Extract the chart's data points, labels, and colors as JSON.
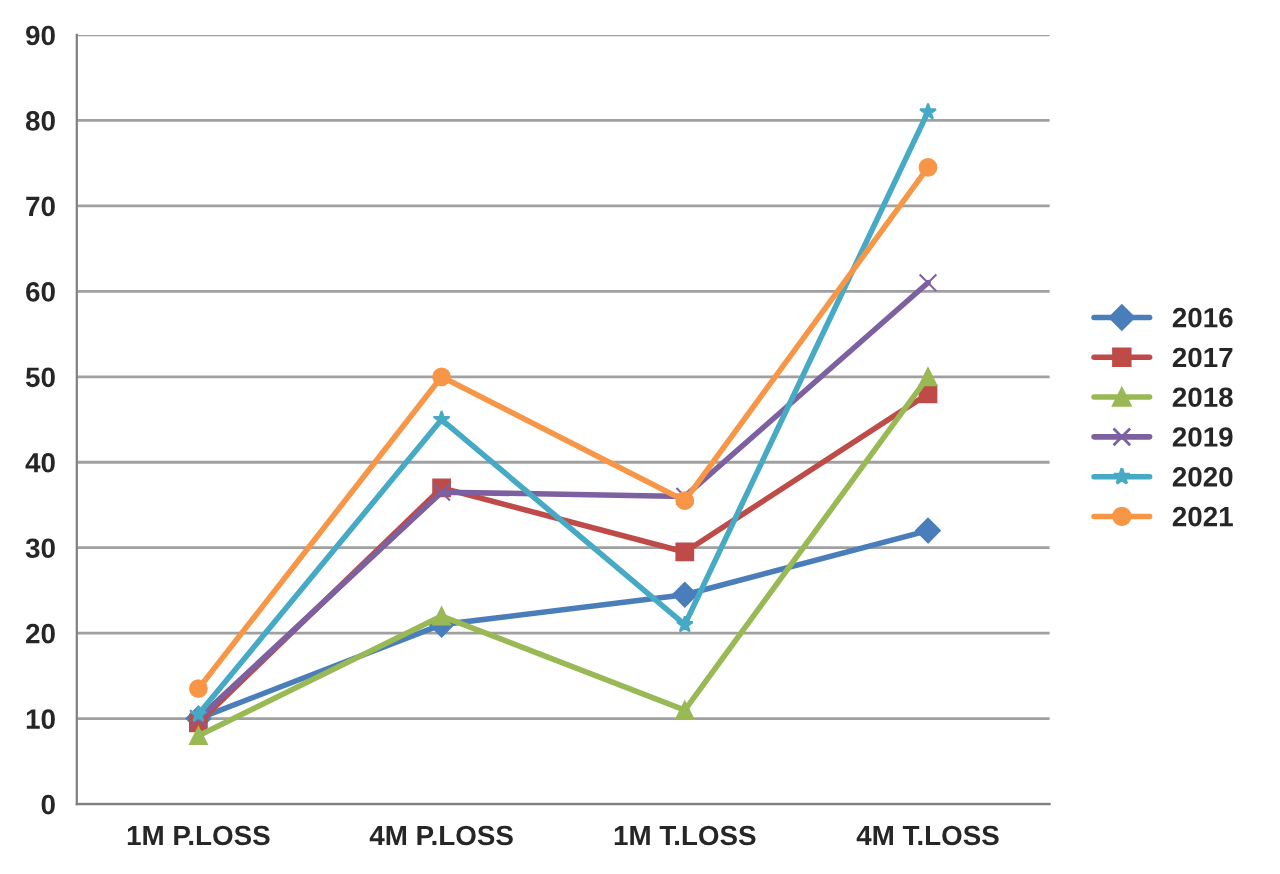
{
  "chart_data": {
    "type": "line",
    "categories": [
      "1M P.LOSS",
      "4M P.LOSS",
      "1M T.LOSS",
      "4M T.LOSS"
    ],
    "ylim": [
      0,
      90
    ],
    "yticks": [
      0,
      10,
      20,
      30,
      40,
      50,
      60,
      70,
      80,
      90
    ],
    "grid": "y",
    "legend": "right",
    "series": [
      {
        "name": "2016",
        "color": "#4a7ebb",
        "marker": "diamond",
        "values": [
          10,
          21,
          24.5,
          32
        ]
      },
      {
        "name": "2017",
        "color": "#be4b48",
        "marker": "square",
        "values": [
          9.5,
          37,
          29.5,
          48
        ]
      },
      {
        "name": "2018",
        "color": "#98b954",
        "marker": "triangle",
        "values": [
          8,
          22,
          11,
          50
        ]
      },
      {
        "name": "2019",
        "color": "#7d60a0",
        "marker": "cross",
        "values": [
          10,
          36.5,
          36,
          61
        ]
      },
      {
        "name": "2020",
        "color": "#46aac5",
        "marker": "star",
        "values": [
          10.5,
          45,
          21,
          81
        ]
      },
      {
        "name": "2021",
        "color": "#f79646",
        "marker": "circle",
        "values": [
          13.5,
          50,
          35.5,
          74.5
        ]
      }
    ]
  }
}
